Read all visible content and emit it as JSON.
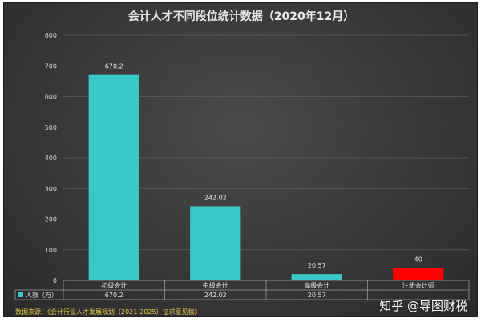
{
  "chart_data": {
    "type": "bar",
    "title": "会计人才不同段位统计数据（2020年12月）",
    "categories": [
      "初级会计",
      "中级会计",
      "高级会计",
      "注册会计师"
    ],
    "series": [
      {
        "name": "人数（万）",
        "values": [
          670.2,
          242.02,
          20.57,
          40
        ]
      }
    ],
    "data_labels": [
      "670.2",
      "242.02",
      "20.57",
      "40"
    ],
    "table_values": [
      "670.2",
      "242.02",
      "20.57",
      ""
    ],
    "bar_colors": [
      "#38c8c8",
      "#38c8c8",
      "#38c8c8",
      "#ff0000"
    ],
    "ylim": [
      0,
      800
    ],
    "yticks": [
      0,
      100,
      200,
      300,
      400,
      500,
      600,
      700,
      800
    ],
    "grid": true,
    "legend_position": "data-table-bottom"
  },
  "source_note": "数据来源：《会计行业人才发展规划（2021-2025）征求意见稿》",
  "watermark": "知乎 @导图财税"
}
